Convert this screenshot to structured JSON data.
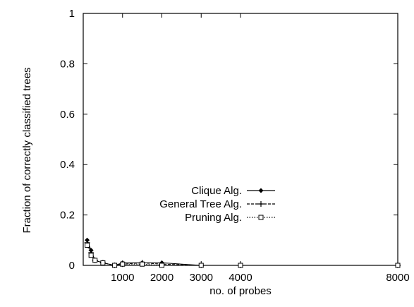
{
  "chart_data": {
    "type": "line",
    "title": "",
    "xlabel": "no. of probes",
    "ylabel": "Fraction of correctly classified trees",
    "xlim": [
      0,
      8000
    ],
    "ylim": [
      0,
      1
    ],
    "x_ticks": [
      1000,
      2000,
      3000,
      4000,
      8000
    ],
    "x_tick_labels": [
      "1000",
      "2000",
      "3000",
      "4000",
      "8000"
    ],
    "y_ticks": [
      0,
      0.2,
      0.4,
      0.6,
      0.8,
      1
    ],
    "y_tick_labels": [
      "0",
      "0.2",
      "0.4",
      "0.6",
      "0.8",
      "1"
    ],
    "grid": false,
    "legend_position": "center-left",
    "series": [
      {
        "name": "Clique Alg.",
        "marker": "diamond",
        "line": "solid",
        "x": [
          100,
          200,
          300,
          500,
          800,
          1000,
          1500,
          2000,
          3000,
          4000,
          8000
        ],
        "y": [
          0.1,
          0.06,
          0.02,
          0.01,
          0.0,
          0.01,
          0.01,
          0.01,
          0.0,
          0.0,
          0.0
        ]
      },
      {
        "name": "General Tree Alg.",
        "marker": "plus",
        "line": "dashed",
        "x": [
          100,
          200,
          300,
          500,
          800,
          1000,
          1500,
          2000,
          3000,
          4000,
          8000
        ],
        "y": [
          0.09,
          0.05,
          0.02,
          0.01,
          0.0,
          0.005,
          0.01,
          0.005,
          0.0,
          0.0,
          0.0
        ]
      },
      {
        "name": "Pruning Alg.",
        "marker": "square",
        "line": "dotted",
        "x": [
          100,
          200,
          300,
          500,
          800,
          1000,
          1500,
          2000,
          3000,
          4000,
          8000
        ],
        "y": [
          0.08,
          0.04,
          0.02,
          0.01,
          0.0,
          0.005,
          0.005,
          0.0,
          0.0,
          0.0,
          0.0
        ]
      }
    ]
  }
}
